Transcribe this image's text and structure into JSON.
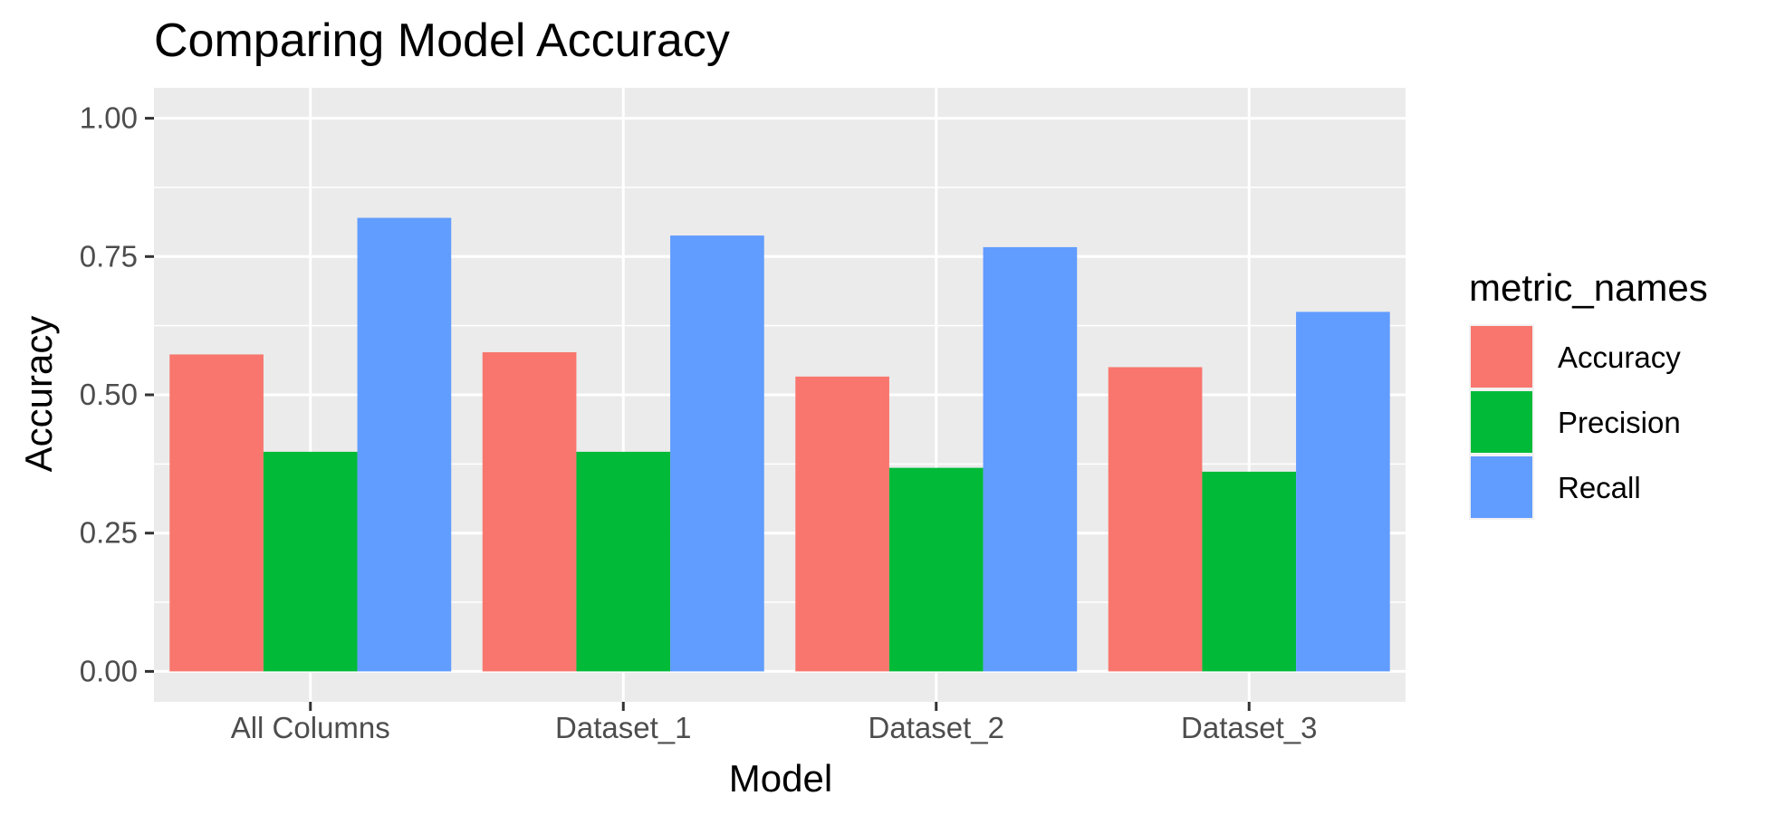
{
  "chart_data": {
    "type": "bar",
    "title": "Comparing Model Accuracy",
    "xlabel": "Model",
    "ylabel": "Accuracy",
    "categories": [
      "All Columns",
      "Dataset_1",
      "Dataset_2",
      "Dataset_3"
    ],
    "series": [
      {
        "name": "Accuracy",
        "color": "#F8766D",
        "values": [
          0.573,
          0.577,
          0.533,
          0.55
        ]
      },
      {
        "name": "Precision",
        "color": "#00BA38",
        "values": [
          0.397,
          0.397,
          0.368,
          0.361
        ]
      },
      {
        "name": "Recall",
        "color": "#619CFF",
        "values": [
          0.82,
          0.788,
          0.767,
          0.65
        ]
      }
    ],
    "ylim": [
      -0.055,
      1.055
    ],
    "yticks": [
      0.0,
      0.25,
      0.5,
      0.75,
      1.0
    ],
    "ytick_labels": [
      "0.00",
      "0.25",
      "0.50",
      "0.75",
      "1.00"
    ],
    "grid": true,
    "panel_background": "#EBEBEB",
    "legend": {
      "title": "metric_names",
      "position": "right"
    }
  }
}
